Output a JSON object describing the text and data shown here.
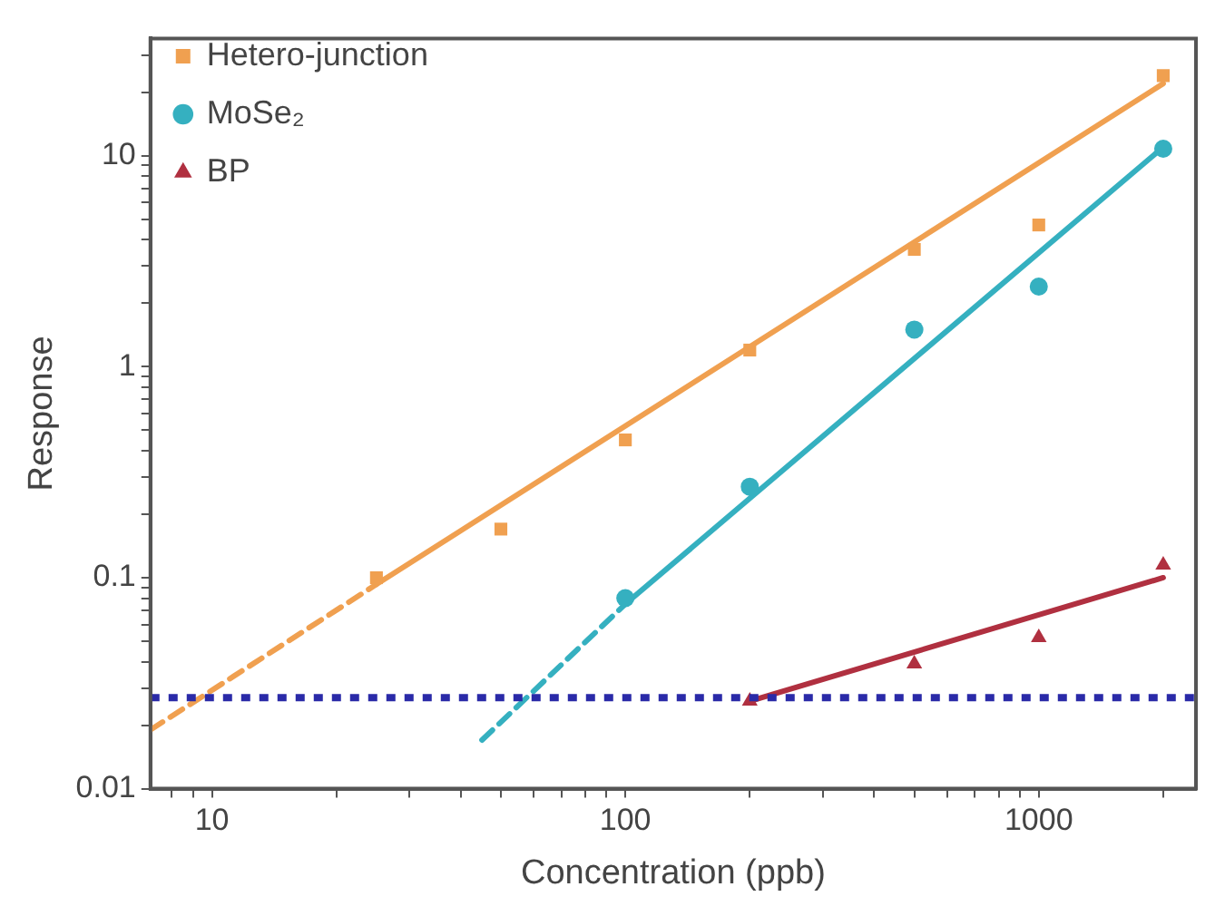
{
  "chart_data": {
    "type": "scatter",
    "xlabel": "Concentration (ppb)",
    "ylabel": "Response",
    "log": "xy",
    "legend": "top left",
    "grid": false,
    "xlim": [
      7.1,
      2400
    ],
    "ylim": [
      0.01,
      36
    ],
    "xticks": [
      {
        "value": 8,
        "label": null
      },
      {
        "value": 9,
        "label": null
      },
      10,
      {
        "value": 20,
        "label": null
      },
      {
        "value": 30,
        "label": null
      },
      {
        "value": 40,
        "label": null
      },
      {
        "value": 50,
        "label": null
      },
      {
        "value": 60,
        "label": null
      },
      {
        "value": 70,
        "label": null
      },
      {
        "value": 80,
        "label": null
      },
      {
        "value": 90,
        "label": null
      },
      100,
      {
        "value": 200,
        "label": null
      },
      {
        "value": 300,
        "label": null
      },
      {
        "value": 400,
        "label": null
      },
      {
        "value": 500,
        "label": null
      },
      {
        "value": 600,
        "label": null
      },
      {
        "value": 700,
        "label": null
      },
      {
        "value": 800,
        "label": null
      },
      {
        "value": 900,
        "label": null
      },
      1000,
      {
        "value": 2000,
        "label": null
      }
    ],
    "yticks": [
      0.01,
      {
        "value": 0.02,
        "label": null
      },
      {
        "value": 0.03,
        "label": null
      },
      {
        "value": 0.04,
        "label": null
      },
      {
        "value": 0.05,
        "label": null
      },
      {
        "value": 0.06,
        "label": null
      },
      {
        "value": 0.07,
        "label": null
      },
      {
        "value": 0.08,
        "label": null
      },
      {
        "value": 0.09,
        "label": null
      },
      0.1,
      {
        "value": 0.2,
        "label": null
      },
      {
        "value": 0.3,
        "label": null
      },
      {
        "value": 0.4,
        "label": null
      },
      {
        "value": 0.5,
        "label": null
      },
      {
        "value": 0.6,
        "label": null
      },
      {
        "value": 0.7,
        "label": null
      },
      {
        "value": 0.8,
        "label": null
      },
      {
        "value": 0.9,
        "label": null
      },
      1,
      {
        "value": 2,
        "label": null
      },
      {
        "value": 3,
        "label": null
      },
      {
        "value": 4,
        "label": null
      },
      {
        "value": 5,
        "label": null
      },
      {
        "value": 6,
        "label": null
      },
      {
        "value": 7,
        "label": null
      },
      {
        "value": 8,
        "label": null
      },
      {
        "value": 9,
        "label": null
      },
      10,
      {
        "value": 20,
        "label": null
      },
      {
        "value": 30,
        "label": null
      }
    ],
    "series": [
      {
        "name": "Hetero-junction",
        "marker": "square",
        "color": "#f0a050",
        "x": [
          25,
          50,
          100,
          200,
          500,
          1000,
          2000
        ],
        "values": [
          0.1,
          0.17,
          0.45,
          1.2,
          3.6,
          4.7,
          24
        ]
      },
      {
        "name": "MoSe₂",
        "marker": "circle",
        "color": "#35b0c0",
        "x": [
          100,
          200,
          500,
          1000,
          2000
        ],
        "values": [
          0.08,
          0.27,
          1.5,
          2.4,
          10.8
        ]
      },
      {
        "name": "BP",
        "marker": "triangle",
        "color": "#b03040",
        "x": [
          200,
          500,
          1000,
          2000
        ],
        "values": [
          0.026,
          0.039,
          0.052,
          0.115
        ]
      },
      {
        "type": "line",
        "color": "#f0a050",
        "line_style": "solid",
        "x": [
          25,
          2000
        ],
        "values": [
          0.093,
          22
        ]
      },
      {
        "type": "line",
        "color": "#f0a050",
        "line_style": "dashed",
        "x": [
          7.1,
          25
        ],
        "values": [
          0.019,
          0.093
        ]
      },
      {
        "type": "line",
        "color": "#35b0c0",
        "line_style": "solid",
        "x": [
          100,
          2000
        ],
        "values": [
          0.075,
          11
        ]
      },
      {
        "type": "line",
        "color": "#35b0c0",
        "line_style": "dashed",
        "x": [
          45,
          100
        ],
        "values": [
          0.017,
          0.075
        ]
      },
      {
        "type": "line",
        "color": "#b03040",
        "line_style": "solid",
        "x": [
          200,
          2000
        ],
        "values": [
          0.026,
          0.1
        ]
      }
    ],
    "ref_lines": [
      {
        "axis": "y",
        "value": 0.027,
        "color": "#2a2aa8",
        "line_style": "dotted"
      }
    ]
  }
}
